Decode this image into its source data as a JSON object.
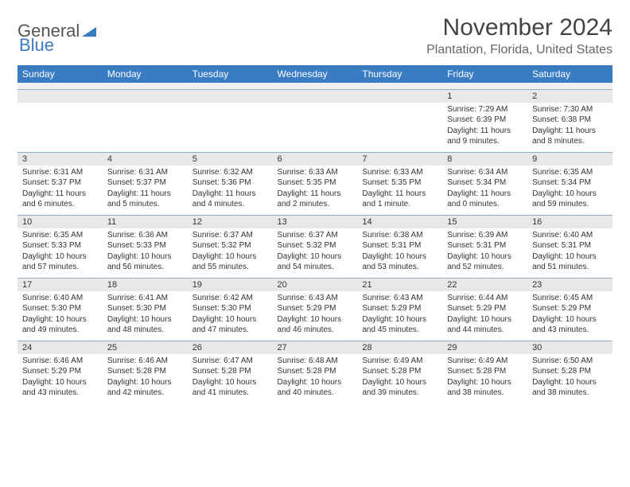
{
  "logo": {
    "part1": "General",
    "part2": "Blue"
  },
  "title": "November 2024",
  "location": "Plantation, Florida, United States",
  "colors": {
    "header_bg": "#3a7cc4",
    "header_text": "#ffffff",
    "date_bg": "#e8e8e8",
    "date_border": "#9aaec2",
    "text": "#333333",
    "logo_gray": "#555555",
    "logo_blue": "#3a7cc4"
  },
  "dayNames": [
    "Sunday",
    "Monday",
    "Tuesday",
    "Wednesday",
    "Thursday",
    "Friday",
    "Saturday"
  ],
  "weeks": [
    [
      {
        "date": "",
        "sunrise": "",
        "sunset": "",
        "daylight": ""
      },
      {
        "date": "",
        "sunrise": "",
        "sunset": "",
        "daylight": ""
      },
      {
        "date": "",
        "sunrise": "",
        "sunset": "",
        "daylight": ""
      },
      {
        "date": "",
        "sunrise": "",
        "sunset": "",
        "daylight": ""
      },
      {
        "date": "",
        "sunrise": "",
        "sunset": "",
        "daylight": ""
      },
      {
        "date": "1",
        "sunrise": "Sunrise: 7:29 AM",
        "sunset": "Sunset: 6:39 PM",
        "daylight": "Daylight: 11 hours and 9 minutes."
      },
      {
        "date": "2",
        "sunrise": "Sunrise: 7:30 AM",
        "sunset": "Sunset: 6:38 PM",
        "daylight": "Daylight: 11 hours and 8 minutes."
      }
    ],
    [
      {
        "date": "3",
        "sunrise": "Sunrise: 6:31 AM",
        "sunset": "Sunset: 5:37 PM",
        "daylight": "Daylight: 11 hours and 6 minutes."
      },
      {
        "date": "4",
        "sunrise": "Sunrise: 6:31 AM",
        "sunset": "Sunset: 5:37 PM",
        "daylight": "Daylight: 11 hours and 5 minutes."
      },
      {
        "date": "5",
        "sunrise": "Sunrise: 6:32 AM",
        "sunset": "Sunset: 5:36 PM",
        "daylight": "Daylight: 11 hours and 4 minutes."
      },
      {
        "date": "6",
        "sunrise": "Sunrise: 6:33 AM",
        "sunset": "Sunset: 5:35 PM",
        "daylight": "Daylight: 11 hours and 2 minutes."
      },
      {
        "date": "7",
        "sunrise": "Sunrise: 6:33 AM",
        "sunset": "Sunset: 5:35 PM",
        "daylight": "Daylight: 11 hours and 1 minute."
      },
      {
        "date": "8",
        "sunrise": "Sunrise: 6:34 AM",
        "sunset": "Sunset: 5:34 PM",
        "daylight": "Daylight: 11 hours and 0 minutes."
      },
      {
        "date": "9",
        "sunrise": "Sunrise: 6:35 AM",
        "sunset": "Sunset: 5:34 PM",
        "daylight": "Daylight: 10 hours and 59 minutes."
      }
    ],
    [
      {
        "date": "10",
        "sunrise": "Sunrise: 6:35 AM",
        "sunset": "Sunset: 5:33 PM",
        "daylight": "Daylight: 10 hours and 57 minutes."
      },
      {
        "date": "11",
        "sunrise": "Sunrise: 6:36 AM",
        "sunset": "Sunset: 5:33 PM",
        "daylight": "Daylight: 10 hours and 56 minutes."
      },
      {
        "date": "12",
        "sunrise": "Sunrise: 6:37 AM",
        "sunset": "Sunset: 5:32 PM",
        "daylight": "Daylight: 10 hours and 55 minutes."
      },
      {
        "date": "13",
        "sunrise": "Sunrise: 6:37 AM",
        "sunset": "Sunset: 5:32 PM",
        "daylight": "Daylight: 10 hours and 54 minutes."
      },
      {
        "date": "14",
        "sunrise": "Sunrise: 6:38 AM",
        "sunset": "Sunset: 5:31 PM",
        "daylight": "Daylight: 10 hours and 53 minutes."
      },
      {
        "date": "15",
        "sunrise": "Sunrise: 6:39 AM",
        "sunset": "Sunset: 5:31 PM",
        "daylight": "Daylight: 10 hours and 52 minutes."
      },
      {
        "date": "16",
        "sunrise": "Sunrise: 6:40 AM",
        "sunset": "Sunset: 5:31 PM",
        "daylight": "Daylight: 10 hours and 51 minutes."
      }
    ],
    [
      {
        "date": "17",
        "sunrise": "Sunrise: 6:40 AM",
        "sunset": "Sunset: 5:30 PM",
        "daylight": "Daylight: 10 hours and 49 minutes."
      },
      {
        "date": "18",
        "sunrise": "Sunrise: 6:41 AM",
        "sunset": "Sunset: 5:30 PM",
        "daylight": "Daylight: 10 hours and 48 minutes."
      },
      {
        "date": "19",
        "sunrise": "Sunrise: 6:42 AM",
        "sunset": "Sunset: 5:30 PM",
        "daylight": "Daylight: 10 hours and 47 minutes."
      },
      {
        "date": "20",
        "sunrise": "Sunrise: 6:43 AM",
        "sunset": "Sunset: 5:29 PM",
        "daylight": "Daylight: 10 hours and 46 minutes."
      },
      {
        "date": "21",
        "sunrise": "Sunrise: 6:43 AM",
        "sunset": "Sunset: 5:29 PM",
        "daylight": "Daylight: 10 hours and 45 minutes."
      },
      {
        "date": "22",
        "sunrise": "Sunrise: 6:44 AM",
        "sunset": "Sunset: 5:29 PM",
        "daylight": "Daylight: 10 hours and 44 minutes."
      },
      {
        "date": "23",
        "sunrise": "Sunrise: 6:45 AM",
        "sunset": "Sunset: 5:29 PM",
        "daylight": "Daylight: 10 hours and 43 minutes."
      }
    ],
    [
      {
        "date": "24",
        "sunrise": "Sunrise: 6:46 AM",
        "sunset": "Sunset: 5:29 PM",
        "daylight": "Daylight: 10 hours and 43 minutes."
      },
      {
        "date": "25",
        "sunrise": "Sunrise: 6:46 AM",
        "sunset": "Sunset: 5:28 PM",
        "daylight": "Daylight: 10 hours and 42 minutes."
      },
      {
        "date": "26",
        "sunrise": "Sunrise: 6:47 AM",
        "sunset": "Sunset: 5:28 PM",
        "daylight": "Daylight: 10 hours and 41 minutes."
      },
      {
        "date": "27",
        "sunrise": "Sunrise: 6:48 AM",
        "sunset": "Sunset: 5:28 PM",
        "daylight": "Daylight: 10 hours and 40 minutes."
      },
      {
        "date": "28",
        "sunrise": "Sunrise: 6:49 AM",
        "sunset": "Sunset: 5:28 PM",
        "daylight": "Daylight: 10 hours and 39 minutes."
      },
      {
        "date": "29",
        "sunrise": "Sunrise: 6:49 AM",
        "sunset": "Sunset: 5:28 PM",
        "daylight": "Daylight: 10 hours and 38 minutes."
      },
      {
        "date": "30",
        "sunrise": "Sunrise: 6:50 AM",
        "sunset": "Sunset: 5:28 PM",
        "daylight": "Daylight: 10 hours and 38 minutes."
      }
    ]
  ]
}
